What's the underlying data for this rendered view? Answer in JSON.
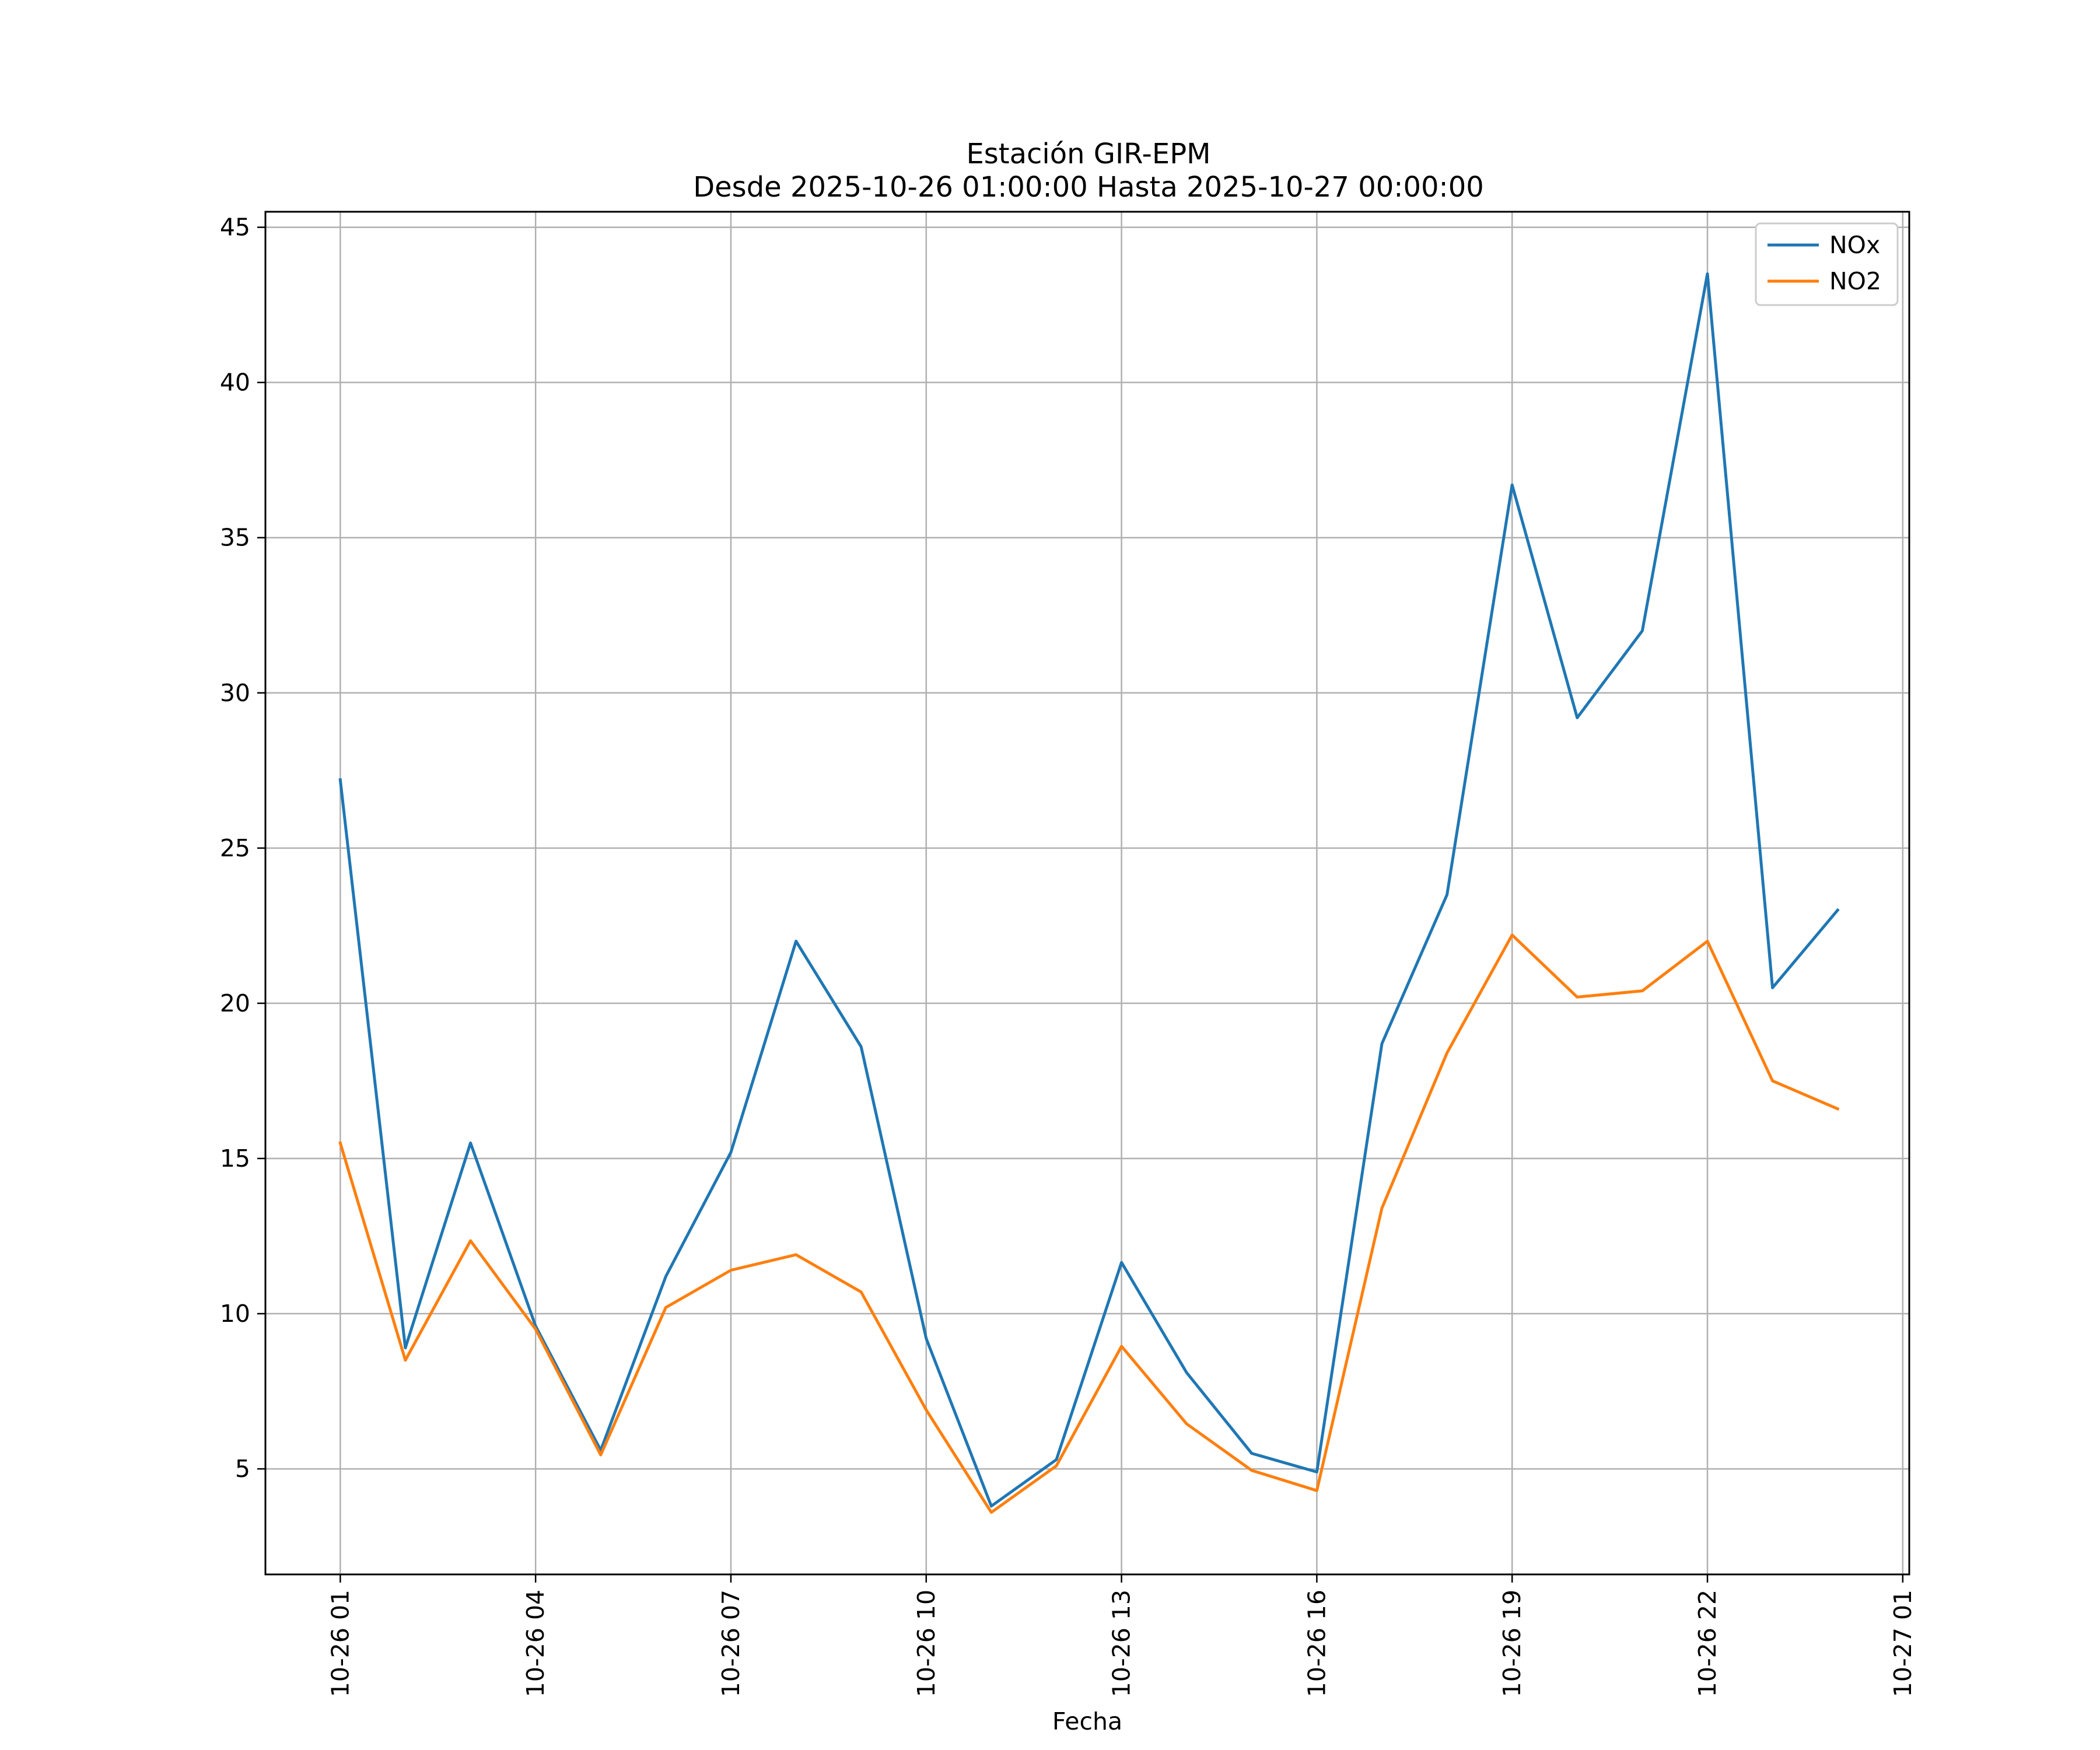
{
  "chart_data": {
    "type": "line",
    "title": "Estación GIR-EPM",
    "subtitle": "Desde 2025-10-26 01:00:00 Hasta 2025-10-27 00:00:00",
    "xlabel": "Fecha",
    "ylabel": "",
    "x": [
      "2025-10-26 01:00",
      "2025-10-26 02:00",
      "2025-10-26 03:00",
      "2025-10-26 04:00",
      "2025-10-26 05:00",
      "2025-10-26 06:00",
      "2025-10-26 07:00",
      "2025-10-26 08:00",
      "2025-10-26 09:00",
      "2025-10-26 10:00",
      "2025-10-26 11:00",
      "2025-10-26 12:00",
      "2025-10-26 13:00",
      "2025-10-26 14:00",
      "2025-10-26 15:00",
      "2025-10-26 16:00",
      "2025-10-26 17:00",
      "2025-10-26 18:00",
      "2025-10-26 19:00",
      "2025-10-26 20:00",
      "2025-10-26 21:00",
      "2025-10-26 22:00",
      "2025-10-26 23:00",
      "2025-10-27 00:00"
    ],
    "series": [
      {
        "name": "NOx",
        "color": "#1f77b4",
        "values": [
          27.2,
          8.9,
          15.5,
          9.6,
          5.6,
          11.2,
          15.2,
          22.0,
          18.6,
          9.2,
          3.8,
          5.3,
          11.65,
          8.1,
          5.5,
          4.9,
          18.7,
          23.5,
          36.7,
          29.2,
          32.0,
          43.5,
          20.5,
          23.0
        ]
      },
      {
        "name": "NO2",
        "color": "#ff7f0e",
        "values": [
          15.5,
          8.5,
          12.35,
          9.5,
          5.45,
          10.2,
          11.4,
          11.9,
          10.7,
          6.9,
          3.6,
          5.1,
          8.95,
          6.45,
          4.95,
          4.3,
          13.4,
          18.4,
          22.2,
          20.2,
          20.4,
          22.0,
          17.5,
          16.6
        ]
      }
    ],
    "x_ticks": [
      "10-26 01",
      "10-26 04",
      "10-26 07",
      "10-26 10",
      "10-26 13",
      "10-26 16",
      "10-26 19",
      "10-26 22",
      "10-27 01"
    ],
    "x_tick_hours": [
      0,
      3,
      6,
      9,
      12,
      15,
      18,
      21,
      24
    ],
    "x_range_hours": [
      -1.15,
      24.1
    ],
    "y_ticks": [
      5,
      10,
      15,
      20,
      25,
      30,
      35,
      40,
      45
    ],
    "ylim": [
      1.6,
      45.5
    ],
    "grid": true,
    "legend_position": "top-right"
  }
}
